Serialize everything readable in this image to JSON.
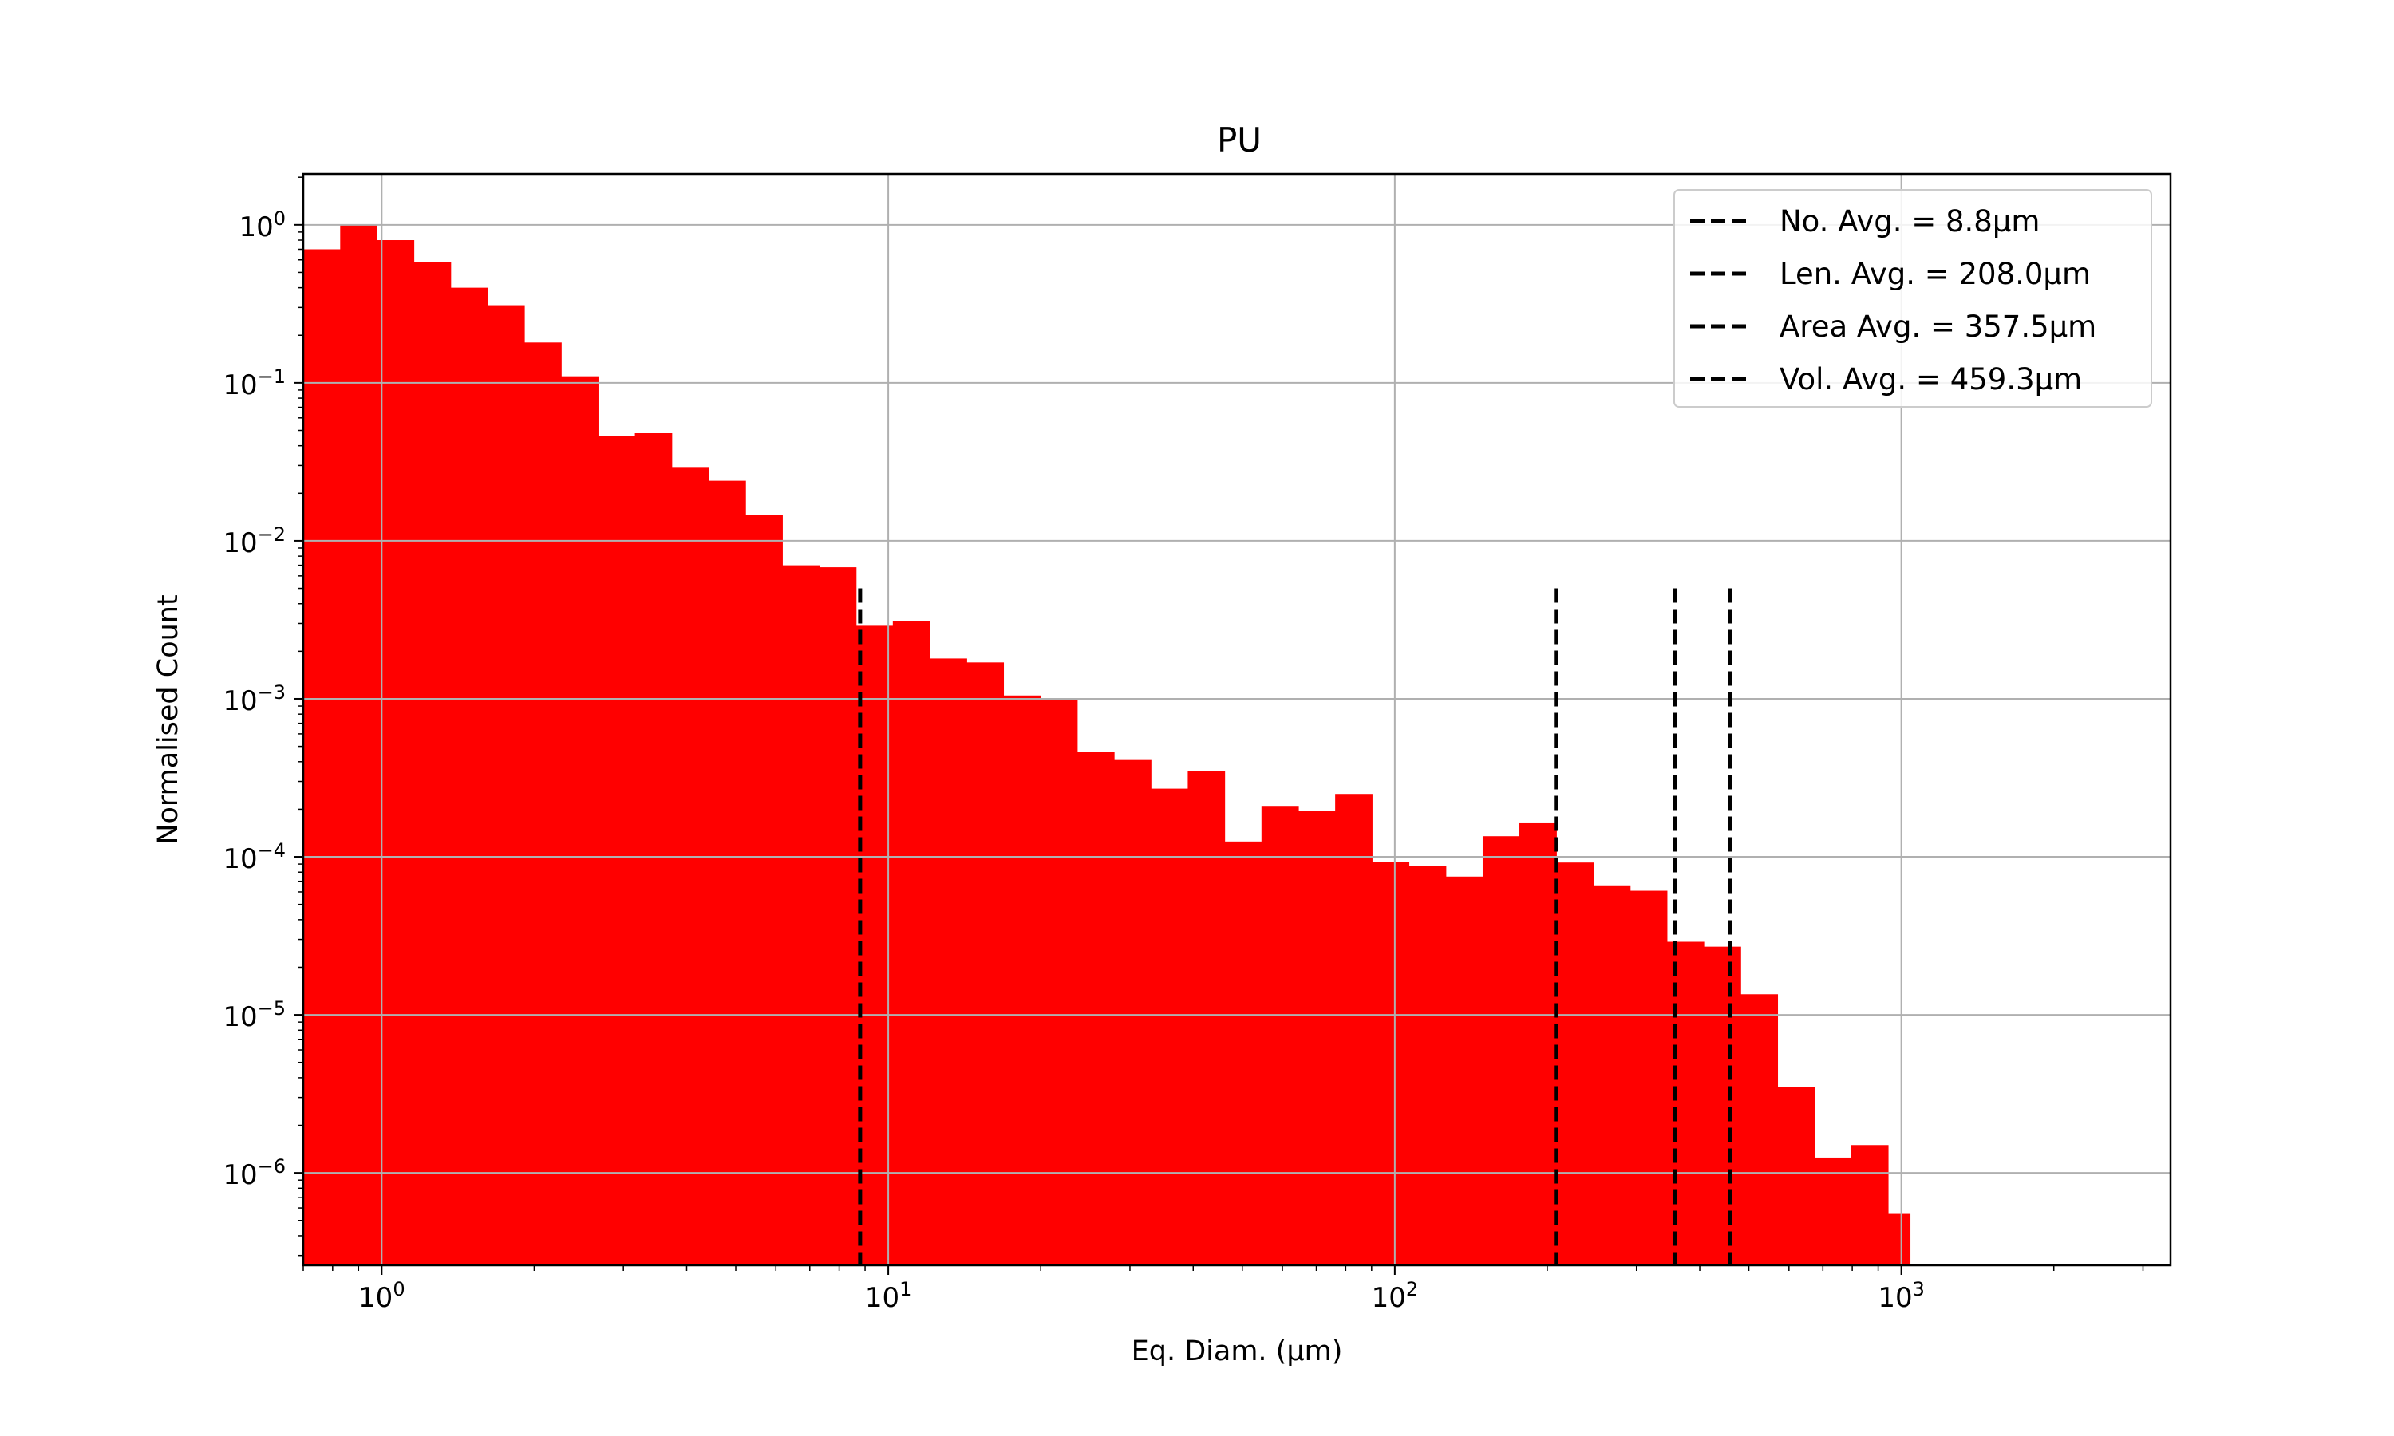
{
  "chart_data": {
    "type": "bar",
    "title": "PU",
    "xlabel": "Eq. Diam. (μm)",
    "ylabel": "Normalised Count",
    "x_scale": "log",
    "y_scale": "log",
    "xlim": [
      0.7,
      3400
    ],
    "ylim": [
      2.6e-07,
      2.1
    ],
    "grid": true,
    "bar_color": "#ff0000",
    "x_ticks": [
      {
        "base": "10",
        "exp": "0",
        "value": 1
      },
      {
        "base": "10",
        "exp": "1",
        "value": 10
      },
      {
        "base": "10",
        "exp": "2",
        "value": 100
      },
      {
        "base": "10",
        "exp": "3",
        "value": 1000
      }
    ],
    "y_ticks": [
      {
        "base": "10",
        "exp": "0",
        "value": 1
      },
      {
        "base": "10",
        "exp": "−1",
        "value": 0.1
      },
      {
        "base": "10",
        "exp": "−2",
        "value": 0.01
      },
      {
        "base": "10",
        "exp": "−3",
        "value": 0.001
      },
      {
        "base": "10",
        "exp": "−4",
        "value": 0.0001
      },
      {
        "base": "10",
        "exp": "−5",
        "value": 1e-05
      },
      {
        "base": "10",
        "exp": "−6",
        "value": 1e-06
      }
    ],
    "bin_edges": [
      0.7,
      0.828,
      0.978,
      1.157,
      1.368,
      1.617,
      1.912,
      2.261,
      2.673,
      3.161,
      3.737,
      4.419,
      5.225,
      6.178,
      7.305,
      8.637,
      10.21,
      12.08,
      14.28,
      16.88,
      19.96,
      23.6,
      27.91,
      33.0,
      39.02,
      46.13,
      54.55,
      64.5,
      76.26,
      90.17,
      106.6,
      126.1,
      149.1,
      176.2,
      208.4,
      246.4,
      291.4,
      344.5,
      407.3,
      481.6,
      569.5,
      673.3,
      796.1,
      941.3,
      1040
    ],
    "values": [
      0.7,
      1.0,
      0.8,
      0.58,
      0.4,
      0.31,
      0.18,
      0.11,
      0.046,
      0.048,
      0.029,
      0.024,
      0.0145,
      0.007,
      0.0068,
      0.0029,
      0.0031,
      0.0018,
      0.0017,
      0.00105,
      0.00098,
      0.00046,
      0.00041,
      0.00027,
      0.00035,
      0.000125,
      0.00021,
      0.000195,
      0.00025,
      9.3e-05,
      8.8e-05,
      7.5e-05,
      0.000135,
      0.000165,
      9.2e-05,
      6.6e-05,
      6.1e-05,
      2.9e-05,
      2.7e-05,
      1.35e-05,
      3.5e-06,
      1.25e-06,
      1.5e-06,
      5.5e-07
    ],
    "reference_lines": [
      {
        "name": "No. Avg. = 8.8μm",
        "x": 8.8
      },
      {
        "name": "Len. Avg. = 208.0μm",
        "x": 208.0
      },
      {
        "name": "Area Avg. = 357.5μm",
        "x": 357.5
      },
      {
        "name": "Vol. Avg. = 459.3μm",
        "x": 459.3
      }
    ],
    "reference_line_top": 0.005,
    "legend_position": "top-right"
  }
}
